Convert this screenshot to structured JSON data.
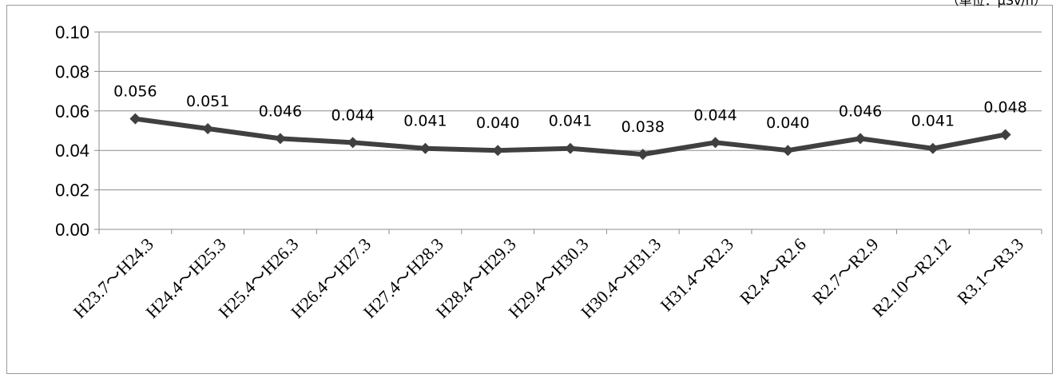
{
  "unit_label": "（単位：µSv/h）",
  "chart_data": {
    "type": "line",
    "categories": [
      "H23.7～H24.3",
      "H24.4～H25.3",
      "H25.4～H26.3",
      "H26.4～H27.3",
      "H27.4～H28.3",
      "H28.4～H29.3",
      "H29.4～H30.3",
      "H30.4～H31.3",
      "H31.4～R2.3",
      "R2.4～R2.6",
      "R2.7～R2.9",
      "R2.10～R2.12",
      "R3.1～R3.3"
    ],
    "series": [
      {
        "values": [
          0.056,
          0.051,
          0.046,
          0.044,
          0.041,
          0.04,
          0.041,
          0.038,
          0.044,
          0.04,
          0.046,
          0.041,
          0.048
        ],
        "data_labels": [
          "0.056",
          "0.051",
          "0.046",
          "0.044",
          "0.041",
          "0.040",
          "0.041",
          "0.038",
          "0.044",
          "0.040",
          "0.046",
          "0.041",
          "0.048"
        ]
      }
    ],
    "y_ticks": [
      "0.00",
      "0.02",
      "0.04",
      "0.06",
      "0.08",
      "0.10"
    ],
    "ylim": [
      0,
      0.1
    ],
    "grid": true,
    "legend": "none",
    "line_color": "#404040",
    "marker": "diamond"
  }
}
